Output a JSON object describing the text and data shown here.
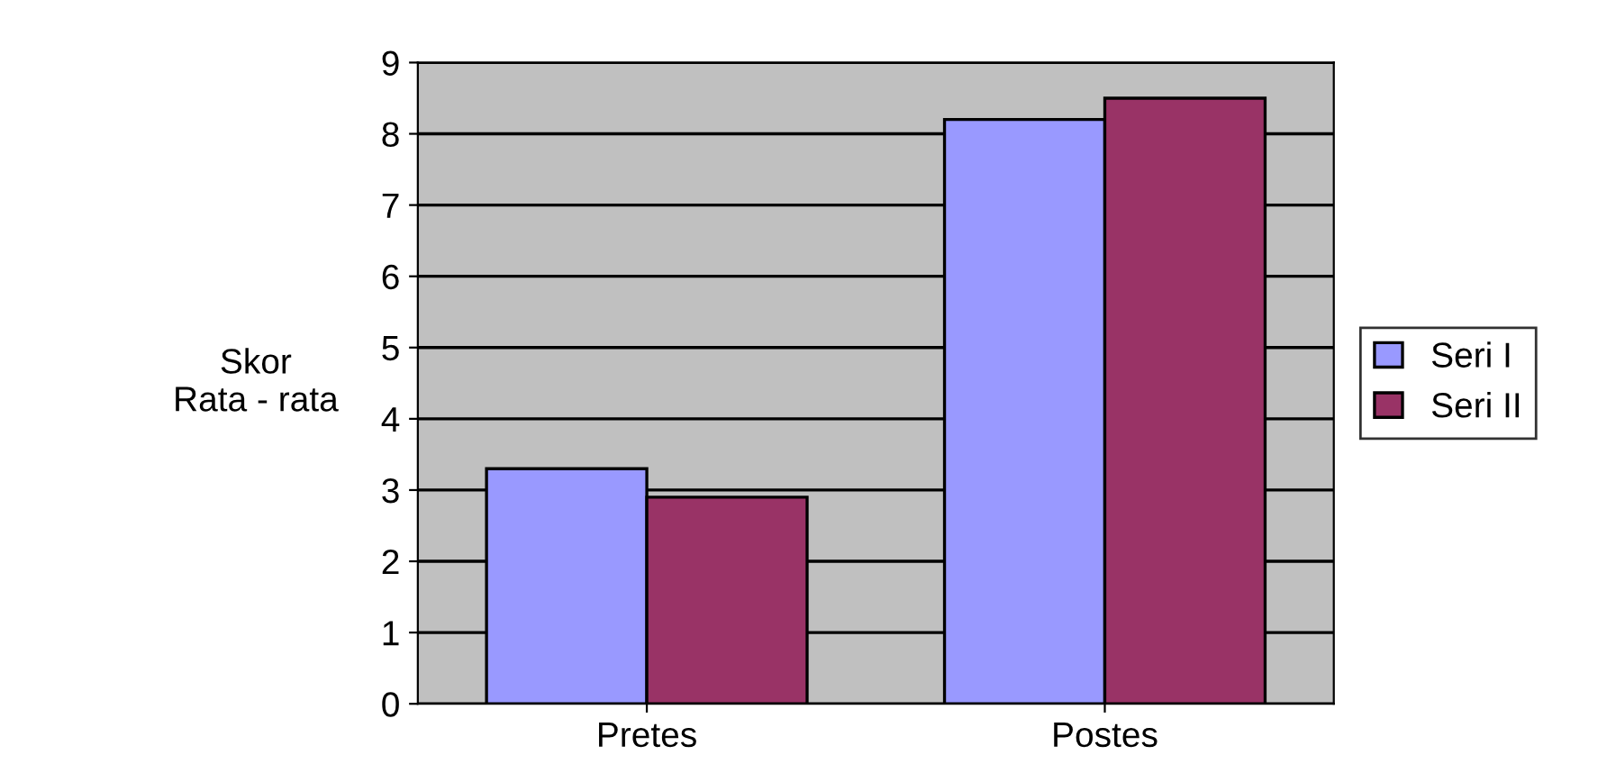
{
  "chart_data": {
    "type": "bar",
    "ylabel": "Skor\nRata - rata",
    "categories": [
      "Pretes",
      "Postes"
    ],
    "series": [
      {
        "name": "Seri I",
        "color": "#9999ff",
        "values": [
          3.3,
          8.2
        ]
      },
      {
        "name": "Seri II",
        "color": "#993366",
        "values": [
          2.9,
          8.5
        ]
      }
    ],
    "ylim": [
      0,
      9
    ],
    "yticks": [
      0,
      1,
      2,
      3,
      4,
      5,
      6,
      7,
      8,
      9
    ],
    "grid": "y",
    "legend": "right"
  }
}
